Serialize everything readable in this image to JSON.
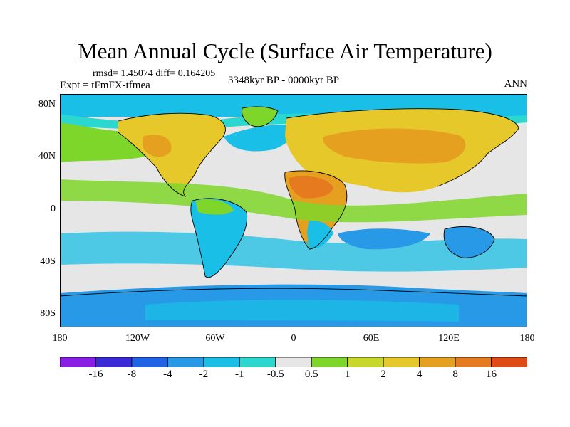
{
  "header": {
    "title": "Mean Annual Cycle (Surface Air Temperature)",
    "stats": "rmsd= 1.45074 diff= 0.164205",
    "period": "3348kyr BP - 0000kyr BP",
    "experiment": "Expt = tFmFX-tfmea",
    "season": "ANN"
  },
  "axes": {
    "lat_labels": [
      "80N",
      "40N",
      "0",
      "40S",
      "80S"
    ],
    "lon_labels": [
      "180",
      "120W",
      "60W",
      "0",
      "60E",
      "120E",
      "180"
    ]
  },
  "colorbar": {
    "colors": [
      "#8a1ee6",
      "#3a2ad8",
      "#1f63e6",
      "#2799e6",
      "#19bfe6",
      "#2ad8d0",
      "#e6e6e6",
      "#7fd62a",
      "#c8d82a",
      "#e6c82a",
      "#e6a020",
      "#e67a1e",
      "#e04a14"
    ],
    "labels": [
      "-16",
      "-8",
      "-4",
      "-2",
      "-1",
      "-0.5",
      "0.5",
      "1",
      "2",
      "4",
      "8",
      "16"
    ]
  },
  "map": {
    "palette": {
      "neutral": "#e6e6e6",
      "light_cyan": "#2ad8d0",
      "cyan": "#19bfe6",
      "blue": "#2799e6",
      "green": "#7fd62a",
      "yellow_green": "#c8d82a",
      "yellow": "#e6c82a",
      "orange": "#e6a020",
      "dark_orange": "#e67a1e"
    }
  }
}
